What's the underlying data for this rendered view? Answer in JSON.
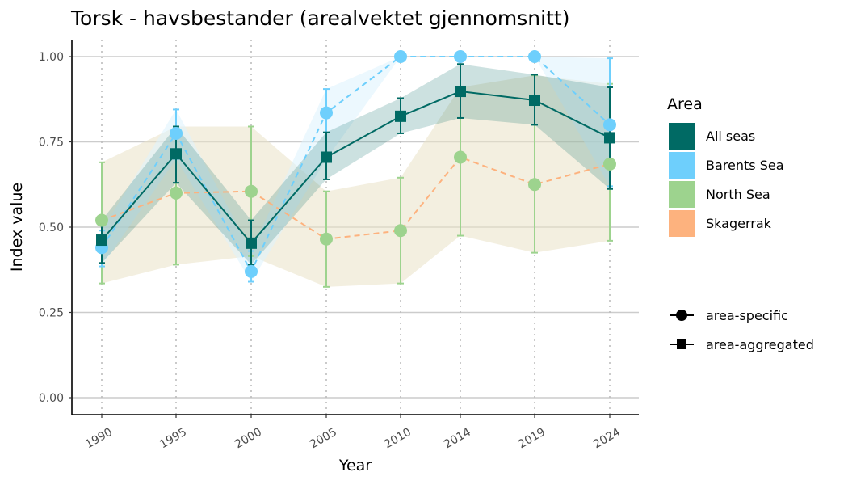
{
  "chart_data": {
    "type": "line",
    "title": "Torsk - havsbestander (arealvektet gjennomsnitt)",
    "xlabel": "Year",
    "ylabel": "Index value",
    "ylim": [
      0,
      1.05
    ],
    "yticks": [
      "0.00",
      "0.25",
      "0.50",
      "0.75",
      "1.00"
    ],
    "ytick_values": [
      0,
      0.25,
      0.5,
      0.75,
      1.0
    ],
    "categories": [
      "1990",
      "1995",
      "2000",
      "2005",
      "2010",
      "2014",
      "2019",
      "2024"
    ],
    "grid": true,
    "legend_title": "Area",
    "legend_position": "right",
    "series": [
      {
        "name": "Skagerrak",
        "color": "#fdb27e",
        "marker": "none",
        "line": "dashed",
        "values": [
          0.52,
          0.6,
          0.605,
          0.465,
          0.49,
          0.705,
          0.625,
          0.685
        ],
        "band_low": [
          0.335,
          0.39,
          0.415,
          0.325,
          0.335,
          0.475,
          0.425,
          0.46
        ],
        "band_high": [
          0.69,
          0.795,
          0.795,
          0.605,
          0.645,
          0.91,
          0.945,
          0.92
        ]
      },
      {
        "name": "North Sea",
        "color": "#9dd38e",
        "marker": "circle",
        "line": "none",
        "values": [
          0.52,
          0.6,
          0.605,
          0.465,
          0.49,
          0.705,
          0.625,
          0.685
        ],
        "err_low": [
          0.335,
          0.39,
          0.415,
          0.325,
          0.335,
          0.475,
          0.425,
          0.46
        ],
        "err_high": [
          0.69,
          0.795,
          0.795,
          0.605,
          0.645,
          0.91,
          0.945,
          0.92
        ]
      },
      {
        "name": "Barents Sea",
        "color": "#6ecffc",
        "marker": "circle",
        "line": "dashed",
        "values": [
          0.44,
          0.775,
          0.37,
          0.835,
          1.0,
          1.0,
          1.0,
          0.8
        ],
        "err_low": [
          0.385,
          0.7,
          0.34,
          0.7,
          1.0,
          1.0,
          1.0,
          0.62
        ],
        "err_high": [
          0.49,
          0.845,
          0.43,
          0.905,
          1.0,
          1.0,
          1.0,
          0.995
        ]
      },
      {
        "name": "All seas",
        "color": "#006a64",
        "marker": "square",
        "line": "solid",
        "values": [
          0.462,
          0.715,
          0.453,
          0.705,
          0.825,
          0.898,
          0.872,
          0.762
        ],
        "err_low": [
          0.395,
          0.63,
          0.39,
          0.64,
          0.775,
          0.82,
          0.8,
          0.612
        ],
        "err_high": [
          0.52,
          0.795,
          0.52,
          0.778,
          0.878,
          0.978,
          0.947,
          0.91
        ]
      }
    ],
    "legend_items": [
      "All seas",
      "Barents Sea",
      "North Sea",
      "Skagerrak"
    ],
    "shape_legend": [
      {
        "label": "area-specific",
        "marker": "circle"
      },
      {
        "label": "area-aggregated",
        "marker": "square"
      }
    ]
  }
}
